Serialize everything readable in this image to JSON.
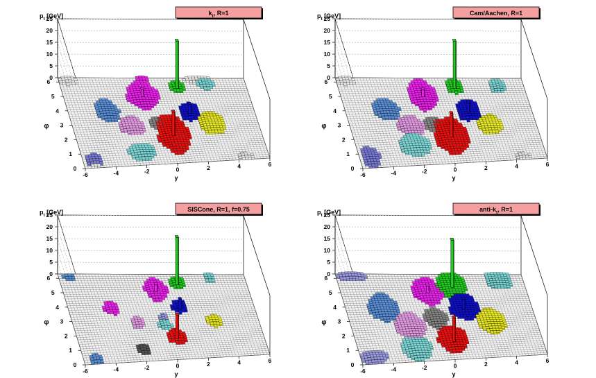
{
  "chart_data": [
    {
      "type": "lego3d",
      "title": "k",
      "title_sub": "t",
      "title_suffix": ", R=1",
      "xlabel": "y",
      "ylabel": "φ",
      "zlabel": "p",
      "zlabel_sub": "t",
      "zlabel_suffix": " [GeV]",
      "xlim": [
        -6,
        6
      ],
      "ylim": [
        0,
        6.3
      ],
      "zlim": [
        0,
        25
      ],
      "x_ticks": [
        "-6",
        "-4",
        "-2",
        "0",
        "2",
        "4",
        "6"
      ],
      "y_ticks": [
        "0",
        "1",
        "2",
        "3",
        "4",
        "5",
        "6"
      ],
      "z_ticks": [
        "0",
        "5",
        "10",
        "15",
        "20",
        "25"
      ],
      "grid": true,
      "jets": [
        {
          "color": "#e8e8e8",
          "points": [
            [
              -5.4,
              6.0,
              0.6,
              0.25
            ],
            [
              -5.3,
              0.3,
              0.5,
              0.3
            ],
            [
              3.0,
              6.1,
              0.9,
              0.3
            ],
            [
              4.5,
              0.2,
              0.5,
              0.2
            ]
          ]
        },
        {
          "color": "#7a7ad8",
          "points": [
            [
              -5.3,
              0.5,
              0.6,
              0.4
            ]
          ]
        },
        {
          "color": "#5b8fd6",
          "points": [
            [
              -3.5,
              3.9,
              0.75,
              0.75
            ]
          ]
        },
        {
          "color": "#e49be4",
          "points": [
            [
              -2.2,
              2.8,
              0.8,
              0.6
            ]
          ]
        },
        {
          "color": "#7fd8d8",
          "points": [
            [
              -2.0,
              0.9,
              0.9,
              0.6
            ],
            [
              3.4,
              5.8,
              0.5,
              0.4
            ]
          ]
        },
        {
          "color": "#ee22ee",
          "points": [
            [
              -0.9,
              5.0,
              1.0,
              1.0,
              3
            ],
            [
              -0.6,
              6.1,
              0.4,
              0.25
            ]
          ]
        },
        {
          "color": "#888888",
          "points": [
            [
              -0.5,
              2.9,
              0.5,
              0.45
            ]
          ]
        },
        {
          "color": "#22cc22",
          "points": [
            [
              1.5,
              5.6,
              0.5,
              0.4,
              20
            ]
          ]
        },
        {
          "color": "#1111cc",
          "points": [
            [
              1.8,
              3.7,
              0.65,
              0.65,
              4
            ]
          ]
        },
        {
          "color": "#ee1111",
          "points": [
            [
              0.3,
              2.1,
              1.0,
              1.4,
              10
            ]
          ]
        },
        {
          "color": "#e8e822",
          "points": [
            [
              3.0,
              2.8,
              0.8,
              0.85
            ]
          ]
        }
      ]
    },
    {
      "type": "lego3d",
      "title": "Cam/Aachen, R=1",
      "title_sub": "",
      "title_suffix": "",
      "xlabel": "y",
      "ylabel": "φ",
      "zlabel": "p",
      "zlabel_sub": "t",
      "zlabel_suffix": " [GeV]",
      "xlim": [
        -6,
        6
      ],
      "ylim": [
        0,
        6.3
      ],
      "zlim": [
        0,
        25
      ],
      "x_ticks": [
        "-6",
        "-4",
        "-2",
        "0",
        "2",
        "4",
        "6"
      ],
      "y_ticks": [
        "0",
        "1",
        "2",
        "3",
        "4",
        "5",
        "6"
      ],
      "z_ticks": [
        "0",
        "5",
        "10",
        "15",
        "20",
        "25"
      ],
      "grid": true,
      "jets": [
        {
          "color": "#e8e8e8",
          "points": [
            [
              -5.4,
              6.0,
              0.6,
              0.25
            ],
            [
              4.5,
              0.2,
              0.5,
              0.2
            ]
          ]
        },
        {
          "color": "#7a7ad8",
          "points": [
            [
              -5.3,
              0.7,
              0.6,
              0.7
            ]
          ]
        },
        {
          "color": "#5b8fd6",
          "points": [
            [
              -3.4,
              4.0,
              0.85,
              0.7
            ]
          ]
        },
        {
          "color": "#e49be4",
          "points": [
            [
              -2.1,
              2.8,
              0.85,
              0.65
            ]
          ]
        },
        {
          "color": "#7fd8d8",
          "points": [
            [
              -2.2,
              1.4,
              1.0,
              0.75
            ],
            [
              4.3,
              5.6,
              0.5,
              0.5
            ]
          ]
        },
        {
          "color": "#ee22ee",
          "points": [
            [
              -0.7,
              5.0,
              0.9,
              1.1,
              3
            ]
          ]
        },
        {
          "color": "#888888",
          "points": [
            [
              -0.6,
              2.8,
              0.6,
              0.5
            ]
          ]
        },
        {
          "color": "#22cc22",
          "points": [
            [
              1.5,
              5.6,
              0.55,
              0.5,
              20
            ]
          ]
        },
        {
          "color": "#1111cc",
          "points": [
            [
              1.9,
              3.8,
              0.8,
              0.75,
              4
            ]
          ]
        },
        {
          "color": "#ee1111",
          "points": [
            [
              0.3,
              2.0,
              1.1,
              1.3,
              10
            ]
          ]
        },
        {
          "color": "#e8e822",
          "points": [
            [
              3.0,
              2.7,
              0.8,
              0.7
            ]
          ]
        }
      ]
    },
    {
      "type": "lego3d",
      "title": "SISCone, R=1, f=0.75",
      "title_sub": "",
      "title_suffix": "",
      "xlabel": "y",
      "ylabel": "φ",
      "zlabel": "p",
      "zlabel_sub": "t",
      "zlabel_suffix": " [GeV]",
      "xlim": [
        -6,
        6
      ],
      "ylim": [
        0,
        6.3
      ],
      "zlim": [
        0,
        25
      ],
      "x_ticks": [
        "-6",
        "-4",
        "-2",
        "0",
        "2",
        "4",
        "6"
      ],
      "y_ticks": [
        "0",
        "1",
        "2",
        "3",
        "4",
        "5",
        "6"
      ],
      "z_ticks": [
        "0",
        "5",
        "10",
        "15",
        "20",
        "25"
      ],
      "grid": true,
      "jets": [
        {
          "color": "#5b8fd6",
          "points": [
            [
              -5.3,
              6.0,
              0.4,
              0.2
            ],
            [
              -5.2,
              0.3,
              0.45,
              0.3
            ]
          ]
        },
        {
          "color": "#ee22ee",
          "points": [
            [
              -3.2,
              3.8,
              0.5,
              0.45
            ],
            [
              0.0,
              5.1,
              0.7,
              0.8,
              3
            ]
          ]
        },
        {
          "color": "#e49be4",
          "points": [
            [
              -1.8,
              2.7,
              0.4,
              0.4
            ]
          ]
        },
        {
          "color": "#555555",
          "points": [
            [
              -2.0,
              0.8,
              0.4,
              0.35
            ]
          ]
        },
        {
          "color": "#9a9ae0",
          "points": [
            [
              -0.1,
              3.0,
              0.3,
              0.3
            ]
          ]
        },
        {
          "color": "#7fd8d8",
          "points": [
            [
              3.7,
              6.0,
              0.35,
              0.3
            ],
            [
              -0.1,
              2.5,
              0.4,
              0.35
            ]
          ]
        },
        {
          "color": "#22cc22",
          "points": [
            [
              1.5,
              5.6,
              0.5,
              0.45,
              20
            ]
          ]
        },
        {
          "color": "#1111cc",
          "points": [
            [
              1.2,
              3.8,
              0.5,
              0.45,
              4
            ]
          ]
        },
        {
          "color": "#ee1111",
          "points": [
            [
              0.4,
              1.6,
              0.6,
              0.5,
              10
            ]
          ]
        },
        {
          "color": "#e8e822",
          "points": [
            [
              3.1,
              2.7,
              0.5,
              0.4
            ]
          ]
        }
      ]
    },
    {
      "type": "lego3d",
      "title": "anti-k",
      "title_sub": "t",
      "title_suffix": ", R=1",
      "xlabel": "y",
      "ylabel": "φ",
      "zlabel": "p",
      "zlabel_sub": "t",
      "zlabel_suffix": " [GeV]",
      "xlim": [
        -6,
        6
      ],
      "ylim": [
        0,
        6.3
      ],
      "zlim": [
        0,
        25
      ],
      "x_ticks": [
        "-6",
        "-4",
        "-2",
        "0",
        "2",
        "4",
        "6"
      ],
      "y_ticks": [
        "0",
        "1",
        "2",
        "3",
        "4",
        "5",
        "6"
      ],
      "z_ticks": [
        "0",
        "5",
        "10",
        "15",
        "20",
        "25"
      ],
      "grid": true,
      "jets": [
        {
          "color": "#9a9ae0",
          "points": [
            [
              -5.0,
              6.1,
              0.9,
              0.3
            ],
            [
              -5.1,
              0.4,
              0.9,
              0.45
            ]
          ]
        },
        {
          "color": "#7fd8d8",
          "points": [
            [
              4.4,
              5.9,
              0.85,
              0.75
            ],
            [
              -2.2,
              0.9,
              0.95,
              0.85
            ]
          ]
        },
        {
          "color": "#5b8fd6",
          "points": [
            [
              -3.6,
              3.9,
              0.95,
              0.95
            ]
          ]
        },
        {
          "color": "#e49be4",
          "points": [
            [
              -2.2,
              2.5,
              0.95,
              0.9
            ]
          ]
        },
        {
          "color": "#ee22ee",
          "points": [
            [
              -0.4,
              5.0,
              0.95,
              0.95,
              3
            ]
          ]
        },
        {
          "color": "#22cc22",
          "points": [
            [
              1.3,
              5.4,
              0.95,
              0.95,
              20
            ]
          ]
        },
        {
          "color": "#1111cc",
          "points": [
            [
              1.6,
              3.8,
              0.95,
              0.95,
              4
            ]
          ]
        },
        {
          "color": "#888888",
          "points": [
            [
              -0.4,
              3.0,
              0.7,
              0.7
            ]
          ]
        },
        {
          "color": "#e8e822",
          "points": [
            [
              3.1,
              2.7,
              0.9,
              0.9
            ]
          ]
        },
        {
          "color": "#ee1111",
          "points": [
            [
              0.3,
              1.4,
              0.95,
              0.95,
              10
            ]
          ]
        }
      ]
    }
  ]
}
